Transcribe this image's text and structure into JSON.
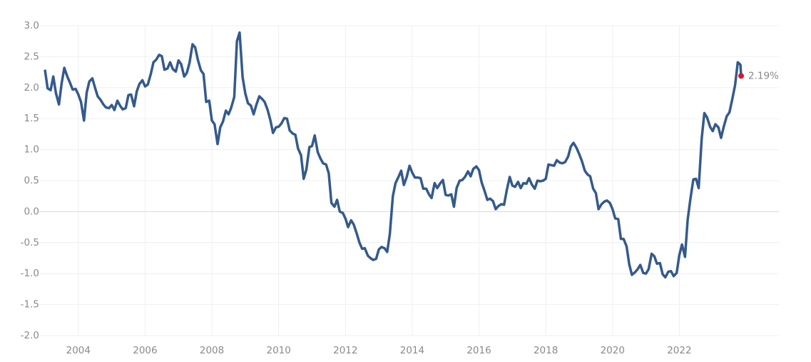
{
  "chart_data": {
    "type": "line",
    "x": [
      2003.0,
      2003.08,
      2003.17,
      2003.25,
      2003.33,
      2003.42,
      2003.5,
      2003.58,
      2003.67,
      2003.75,
      2003.83,
      2003.92,
      2004.0,
      2004.08,
      2004.17,
      2004.25,
      2004.33,
      2004.42,
      2004.5,
      2004.58,
      2004.67,
      2004.75,
      2004.83,
      2004.92,
      2005.0,
      2005.08,
      2005.17,
      2005.25,
      2005.33,
      2005.42,
      2005.5,
      2005.58,
      2005.67,
      2005.75,
      2005.83,
      2005.92,
      2006.0,
      2006.08,
      2006.17,
      2006.25,
      2006.33,
      2006.42,
      2006.5,
      2006.58,
      2006.67,
      2006.75,
      2006.83,
      2006.92,
      2007.0,
      2007.08,
      2007.17,
      2007.25,
      2007.33,
      2007.42,
      2007.5,
      2007.58,
      2007.67,
      2007.75,
      2007.83,
      2007.92,
      2008.0,
      2008.08,
      2008.17,
      2008.25,
      2008.33,
      2008.42,
      2008.5,
      2008.58,
      2008.67,
      2008.75,
      2008.83,
      2008.92,
      2009.0,
      2009.08,
      2009.17,
      2009.25,
      2009.33,
      2009.42,
      2009.5,
      2009.58,
      2009.67,
      2009.75,
      2009.83,
      2009.92,
      2010.0,
      2010.08,
      2010.17,
      2010.25,
      2010.33,
      2010.42,
      2010.5,
      2010.58,
      2010.67,
      2010.75,
      2010.83,
      2010.92,
      2011.0,
      2011.08,
      2011.17,
      2011.25,
      2011.33,
      2011.42,
      2011.5,
      2011.58,
      2011.67,
      2011.75,
      2011.83,
      2011.92,
      2012.0,
      2012.08,
      2012.17,
      2012.25,
      2012.33,
      2012.42,
      2012.5,
      2012.58,
      2012.67,
      2012.75,
      2012.83,
      2012.92,
      2013.0,
      2013.08,
      2013.17,
      2013.25,
      2013.33,
      2013.42,
      2013.5,
      2013.58,
      2013.67,
      2013.75,
      2013.83,
      2013.92,
      2014.0,
      2014.08,
      2014.17,
      2014.25,
      2014.33,
      2014.42,
      2014.5,
      2014.58,
      2014.67,
      2014.75,
      2014.83,
      2014.92,
      2015.0,
      2015.08,
      2015.17,
      2015.25,
      2015.33,
      2015.42,
      2015.5,
      2015.58,
      2015.67,
      2015.75,
      2015.83,
      2015.92,
      2016.0,
      2016.08,
      2016.17,
      2016.25,
      2016.33,
      2016.42,
      2016.5,
      2016.58,
      2016.67,
      2016.75,
      2016.83,
      2016.92,
      2017.0,
      2017.08,
      2017.17,
      2017.25,
      2017.33,
      2017.42,
      2017.5,
      2017.58,
      2017.67,
      2017.75,
      2017.83,
      2017.92,
      2018.0,
      2018.08,
      2018.17,
      2018.25,
      2018.33,
      2018.42,
      2018.5,
      2018.58,
      2018.67,
      2018.75,
      2018.83,
      2018.92,
      2019.0,
      2019.08,
      2019.17,
      2019.25,
      2019.33,
      2019.42,
      2019.5,
      2019.58,
      2019.67,
      2019.75,
      2019.83,
      2019.92,
      2020.0,
      2020.08,
      2020.17,
      2020.25,
      2020.33,
      2020.42,
      2020.5,
      2020.58,
      2020.67,
      2020.75,
      2020.83,
      2020.92,
      2021.0,
      2021.08,
      2021.17,
      2021.25,
      2021.33,
      2021.42,
      2021.5,
      2021.58,
      2021.67,
      2021.75,
      2021.83,
      2021.92,
      2022.0,
      2022.08,
      2022.17,
      2022.25,
      2022.33,
      2022.42,
      2022.5,
      2022.58,
      2022.67,
      2022.75,
      2022.83,
      2022.92,
      2023.0,
      2023.08,
      2023.17,
      2023.25,
      2023.33,
      2023.42,
      2023.5,
      2023.58,
      2023.67,
      2023.75,
      2023.83,
      2023.85
    ],
    "values": [
      2.29,
      1.99,
      1.96,
      2.18,
      1.91,
      1.73,
      2.07,
      2.32,
      2.18,
      2.08,
      1.97,
      1.98,
      1.89,
      1.77,
      1.47,
      1.92,
      2.1,
      2.15,
      2.0,
      1.86,
      1.8,
      1.73,
      1.68,
      1.67,
      1.72,
      1.64,
      1.79,
      1.71,
      1.65,
      1.67,
      1.88,
      1.89,
      1.7,
      1.94,
      2.06,
      2.12,
      2.02,
      2.05,
      2.22,
      2.41,
      2.45,
      2.53,
      2.51,
      2.29,
      2.31,
      2.41,
      2.3,
      2.26,
      2.44,
      2.38,
      2.18,
      2.24,
      2.4,
      2.7,
      2.65,
      2.45,
      2.28,
      2.22,
      1.77,
      1.79,
      1.47,
      1.41,
      1.09,
      1.36,
      1.45,
      1.63,
      1.57,
      1.68,
      1.85,
      2.75,
      2.89,
      2.17,
      1.91,
      1.75,
      1.71,
      1.57,
      1.72,
      1.86,
      1.82,
      1.77,
      1.64,
      1.48,
      1.27,
      1.36,
      1.37,
      1.42,
      1.51,
      1.5,
      1.31,
      1.26,
      1.24,
      1.02,
      0.91,
      0.53,
      0.68,
      1.04,
      1.06,
      1.23,
      0.96,
      0.86,
      0.78,
      0.76,
      0.62,
      0.14,
      0.08,
      0.19,
      0.0,
      -0.02,
      -0.11,
      -0.25,
      -0.14,
      -0.21,
      -0.34,
      -0.5,
      -0.6,
      -0.59,
      -0.71,
      -0.75,
      -0.78,
      -0.76,
      -0.61,
      -0.57,
      -0.59,
      -0.65,
      -0.36,
      0.25,
      0.46,
      0.55,
      0.66,
      0.43,
      0.55,
      0.74,
      0.63,
      0.55,
      0.55,
      0.54,
      0.37,
      0.37,
      0.28,
      0.22,
      0.46,
      0.38,
      0.45,
      0.51,
      0.27,
      0.26,
      0.28,
      0.08,
      0.38,
      0.5,
      0.51,
      0.56,
      0.65,
      0.57,
      0.69,
      0.73,
      0.67,
      0.47,
      0.33,
      0.19,
      0.21,
      0.17,
      0.04,
      0.09,
      0.12,
      0.11,
      0.34,
      0.56,
      0.42,
      0.4,
      0.48,
      0.38,
      0.46,
      0.45,
      0.54,
      0.44,
      0.37,
      0.5,
      0.49,
      0.5,
      0.53,
      0.76,
      0.75,
      0.74,
      0.83,
      0.79,
      0.78,
      0.8,
      0.89,
      1.05,
      1.11,
      1.03,
      0.93,
      0.82,
      0.66,
      0.6,
      0.57,
      0.37,
      0.3,
      0.04,
      0.12,
      0.16,
      0.18,
      0.14,
      0.04,
      -0.11,
      -0.12,
      -0.44,
      -0.44,
      -0.56,
      -0.85,
      -1.02,
      -0.98,
      -0.93,
      -0.86,
      -0.99,
      -1.0,
      -0.93,
      -0.68,
      -0.72,
      -0.84,
      -0.83,
      -1.01,
      -1.06,
      -0.97,
      -0.96,
      -1.04,
      -0.99,
      -0.7,
      -0.53,
      -0.73,
      -0.13,
      0.2,
      0.52,
      0.53,
      0.38,
      1.18,
      1.59,
      1.52,
      1.37,
      1.3,
      1.41,
      1.36,
      1.19,
      1.37,
      1.54,
      1.6,
      1.8,
      2.04,
      2.41,
      2.37,
      2.19
    ],
    "color": "#345a8c",
    "end_label": "2.19%",
    "end_color": "#e3132f",
    "xlim": [
      2003,
      2023.85
    ],
    "xticks": [
      2004,
      2006,
      2008,
      2010,
      2012,
      2014,
      2016,
      2018,
      2020,
      2022
    ],
    "ylim": [
      -2,
      3
    ],
    "yticks": [
      {
        "value": 3,
        "label": "3.0"
      },
      2.5,
      {
        "value": 2,
        "label": "2.0"
      },
      1.5,
      {
        "value": 1,
        "label": "1.0"
      },
      0.5,
      {
        "value": 0,
        "label": "0.0"
      },
      -0.5,
      {
        "value": -1,
        "label": "-1.0"
      },
      -1.5,
      {
        "value": -2,
        "label": "-2.0"
      }
    ],
    "grid": true
  }
}
